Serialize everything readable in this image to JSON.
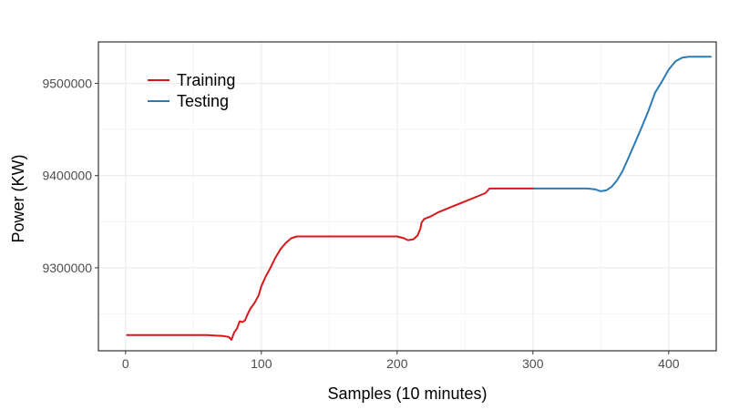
{
  "chart_data": {
    "type": "line",
    "title": "",
    "xlabel": "Samples (10 minutes)",
    "ylabel": "Power (KW)",
    "xlim": [
      -20,
      435
    ],
    "ylim": [
      9210000,
      9545000
    ],
    "x_ticks": [
      0,
      100,
      200,
      300,
      400
    ],
    "x_tick_labels": [
      "0",
      "100",
      "200",
      "300",
      "400"
    ],
    "y_ticks": [
      9300000,
      9400000,
      9500000
    ],
    "y_tick_labels": [
      "9300000",
      "9400000",
      "9500000"
    ],
    "grid": true,
    "legend": {
      "placement": "top-left",
      "entries": [
        "Training",
        "Testing"
      ]
    },
    "series": [
      {
        "name": "Training",
        "color": "#d7191c",
        "x": [
          1,
          20,
          40,
          60,
          65,
          72,
          76,
          78,
          80,
          82,
          84,
          86,
          88,
          90,
          92,
          95,
          98,
          100,
          103,
          106,
          110,
          114,
          118,
          122,
          126,
          140,
          160,
          180,
          200,
          205,
          208,
          212,
          215,
          217,
          218,
          220,
          225,
          230,
          240,
          250,
          260,
          265,
          268,
          275,
          290,
          301
        ],
        "y": [
          9227000,
          9227000,
          9227000,
          9227000,
          9226500,
          9226000,
          9225000,
          9222000,
          9230000,
          9234000,
          9242000,
          9241000,
          9243000,
          9250000,
          9256000,
          9262000,
          9270000,
          9280000,
          9290000,
          9298000,
          9310000,
          9320000,
          9327000,
          9332000,
          9334000,
          9334000,
          9334000,
          9334000,
          9334000,
          9332000,
          9330000,
          9331000,
          9335000,
          9342000,
          9349000,
          9353000,
          9356000,
          9360000,
          9366000,
          9372000,
          9378000,
          9381000,
          9386000,
          9386000,
          9386000,
          9386000
        ]
      },
      {
        "name": "Testing",
        "color": "#2c7bb6",
        "x": [
          301,
          320,
          340,
          346,
          350,
          354,
          358,
          362,
          366,
          370,
          375,
          380,
          385,
          390,
          395,
          400,
          405,
          410,
          415,
          420,
          431
        ],
        "y": [
          9386000,
          9386000,
          9386000,
          9385000,
          9383000,
          9384000,
          9388000,
          9395000,
          9405000,
          9418000,
          9435000,
          9452000,
          9470000,
          9490000,
          9502000,
          9515000,
          9524000,
          9528000,
          9529000,
          9529000,
          9529000
        ]
      }
    ]
  }
}
